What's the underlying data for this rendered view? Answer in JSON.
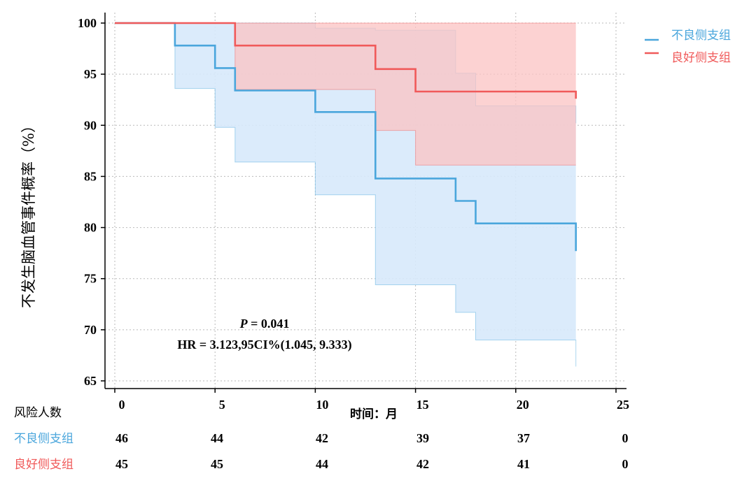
{
  "chart_data": {
    "type": "line",
    "subtype": "kaplan-meier",
    "ylabel": "不发生脑血管事件概率（%）",
    "xlabel": "时间：月",
    "xlim": [
      0,
      25
    ],
    "ylim": [
      65,
      100
    ],
    "x_ticks": [
      "0",
      "5",
      "10",
      "15",
      "20",
      "25"
    ],
    "y_ticks": [
      "65",
      "70",
      "75",
      "80",
      "85",
      "90",
      "95",
      "100"
    ],
    "grid": "dotted",
    "legend_position": "top-right",
    "series": [
      {
        "name": "不良侧支组",
        "color": "#4aa6dc",
        "fill_color": "#d7e9fb",
        "x": [
          0,
          3,
          5,
          6,
          10,
          13,
          17,
          18,
          23
        ],
        "y": [
          100,
          97.8,
          95.6,
          93.4,
          91.3,
          84.8,
          82.6,
          80.4,
          77.7
        ],
        "ci_lower": [
          100,
          93.6,
          89.8,
          86.4,
          83.2,
          74.4,
          71.7,
          69.0,
          66.4
        ],
        "ci_upper": [
          100,
          100,
          100,
          100,
          99.5,
          99.3,
          95.1,
          91.9,
          90.2
        ]
      },
      {
        "name": "良好侧支组",
        "color": "#f05a5a",
        "fill_color": "#fbc3c3",
        "x": [
          0,
          6,
          13,
          15,
          23
        ],
        "y": [
          100,
          97.8,
          95.5,
          93.3,
          92.6
        ],
        "ci_lower": [
          100,
          93.5,
          89.5,
          86.1,
          86.1
        ],
        "ci_upper": [
          100,
          100,
          100,
          100,
          100
        ]
      }
    ],
    "annotations": [
      {
        "text_italic": "P",
        "text": " = 0.041"
      },
      {
        "text": "HR = 3.123,95CI%(1.045, 9.333)"
      }
    ],
    "risk_table": {
      "title": "风险人数",
      "rows": [
        {
          "label": "不良侧支组",
          "color": "#4aa6dc",
          "values": [
            "46",
            "44",
            "42",
            "39",
            "37",
            "0"
          ]
        },
        {
          "label": "良好侧支组",
          "color": "#f05a5a",
          "values": [
            "45",
            "45",
            "44",
            "42",
            "41",
            "0"
          ]
        }
      ]
    }
  }
}
